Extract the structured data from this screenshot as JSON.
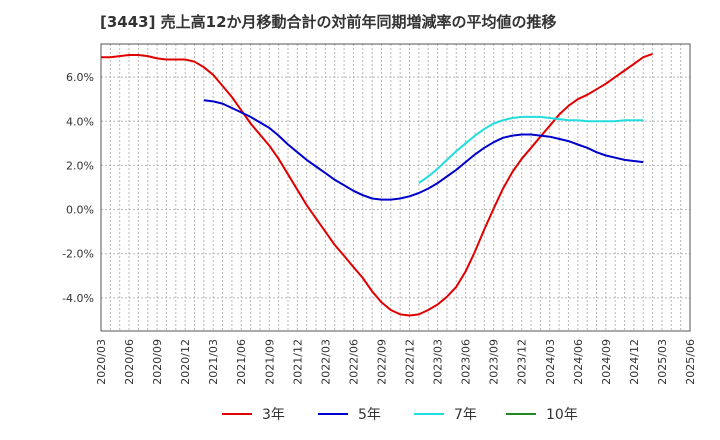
{
  "chart_data": {
    "type": "line",
    "title": "[3443]  売上高12か月移動合計の対前年同期増減率の平均値の推移",
    "xlabel": "",
    "ylabel": "",
    "ylim": [
      -5.5,
      7.5
    ],
    "y_ticks": [
      -4.0,
      -2.0,
      0.0,
      2.0,
      4.0,
      6.0
    ],
    "y_tick_labels": [
      "-4.0%",
      "-2.0%",
      "0.0%",
      "2.0%",
      "4.0%",
      "6.0%"
    ],
    "x_tick_labels": [
      "2020/03",
      "2020/06",
      "2020/09",
      "2020/12",
      "2021/03",
      "2021/06",
      "2021/09",
      "2021/12",
      "2022/03",
      "2022/06",
      "2022/09",
      "2022/12",
      "2023/03",
      "2023/06",
      "2023/09",
      "2023/12",
      "2024/03",
      "2024/06",
      "2024/09",
      "2024/12",
      "2025/03",
      "2025/06"
    ],
    "grid": true,
    "legend_position": "bottom",
    "series": [
      {
        "name": "3年",
        "color": "#e00000",
        "points": [
          [
            "2020/03",
            6.9
          ],
          [
            "2020/04",
            6.9
          ],
          [
            "2020/05",
            6.95
          ],
          [
            "2020/06",
            7.0
          ],
          [
            "2020/07",
            7.0
          ],
          [
            "2020/08",
            6.95
          ],
          [
            "2020/09",
            6.85
          ],
          [
            "2020/10",
            6.8
          ],
          [
            "2020/11",
            6.8
          ],
          [
            "2020/12",
            6.8
          ],
          [
            "2021/01",
            6.7
          ],
          [
            "2021/02",
            6.45
          ],
          [
            "2021/03",
            6.1
          ],
          [
            "2021/04",
            5.6
          ],
          [
            "2021/05",
            5.1
          ],
          [
            "2021/06",
            4.5
          ],
          [
            "2021/07",
            3.9
          ],
          [
            "2021/08",
            3.4
          ],
          [
            "2021/09",
            2.9
          ],
          [
            "2021/10",
            2.3
          ],
          [
            "2021/11",
            1.6
          ],
          [
            "2021/12",
            0.9
          ],
          [
            "2022/01",
            0.2
          ],
          [
            "2022/02",
            -0.4
          ],
          [
            "2022/03",
            -1.0
          ],
          [
            "2022/04",
            -1.6
          ],
          [
            "2022/05",
            -2.1
          ],
          [
            "2022/06",
            -2.6
          ],
          [
            "2022/07",
            -3.1
          ],
          [
            "2022/08",
            -3.7
          ],
          [
            "2022/09",
            -4.2
          ],
          [
            "2022/10",
            -4.55
          ],
          [
            "2022/11",
            -4.75
          ],
          [
            "2022/12",
            -4.8
          ],
          [
            "2023/01",
            -4.75
          ],
          [
            "2023/02",
            -4.55
          ],
          [
            "2023/03",
            -4.3
          ],
          [
            "2023/04",
            -3.95
          ],
          [
            "2023/05",
            -3.5
          ],
          [
            "2023/06",
            -2.8
          ],
          [
            "2023/07",
            -1.9
          ],
          [
            "2023/08",
            -0.9
          ],
          [
            "2023/09",
            0.05
          ],
          [
            "2023/10",
            0.95
          ],
          [
            "2023/11",
            1.7
          ],
          [
            "2023/12",
            2.3
          ],
          [
            "2024/01",
            2.8
          ],
          [
            "2024/02",
            3.3
          ],
          [
            "2024/03",
            3.8
          ],
          [
            "2024/04",
            4.3
          ],
          [
            "2024/05",
            4.7
          ],
          [
            "2024/06",
            5.0
          ],
          [
            "2024/07",
            5.2
          ],
          [
            "2024/08",
            5.45
          ],
          [
            "2024/09",
            5.7
          ],
          [
            "2024/10",
            6.0
          ],
          [
            "2024/11",
            6.3
          ],
          [
            "2024/12",
            6.6
          ],
          [
            "2025/01",
            6.9
          ],
          [
            "2025/02",
            7.05
          ]
        ]
      },
      {
        "name": "5年",
        "color": "#0000cc",
        "points": [
          [
            "2021/02",
            4.95
          ],
          [
            "2021/03",
            4.9
          ],
          [
            "2021/04",
            4.8
          ],
          [
            "2021/05",
            4.6
          ],
          [
            "2021/06",
            4.4
          ],
          [
            "2021/07",
            4.2
          ],
          [
            "2021/08",
            3.95
          ],
          [
            "2021/09",
            3.7
          ],
          [
            "2021/10",
            3.35
          ],
          [
            "2021/11",
            2.95
          ],
          [
            "2021/12",
            2.6
          ],
          [
            "2022/01",
            2.25
          ],
          [
            "2022/02",
            1.95
          ],
          [
            "2022/03",
            1.65
          ],
          [
            "2022/04",
            1.35
          ],
          [
            "2022/05",
            1.1
          ],
          [
            "2022/06",
            0.85
          ],
          [
            "2022/07",
            0.65
          ],
          [
            "2022/08",
            0.5
          ],
          [
            "2022/09",
            0.45
          ],
          [
            "2022/10",
            0.45
          ],
          [
            "2022/11",
            0.5
          ],
          [
            "2022/12",
            0.6
          ],
          [
            "2023/01",
            0.75
          ],
          [
            "2023/02",
            0.95
          ],
          [
            "2023/03",
            1.2
          ],
          [
            "2023/04",
            1.5
          ],
          [
            "2023/05",
            1.8
          ],
          [
            "2023/06",
            2.15
          ],
          [
            "2023/07",
            2.5
          ],
          [
            "2023/08",
            2.8
          ],
          [
            "2023/09",
            3.05
          ],
          [
            "2023/10",
            3.25
          ],
          [
            "2023/11",
            3.35
          ],
          [
            "2023/12",
            3.4
          ],
          [
            "2024/01",
            3.4
          ],
          [
            "2024/02",
            3.35
          ],
          [
            "2024/03",
            3.3
          ],
          [
            "2024/04",
            3.2
          ],
          [
            "2024/05",
            3.1
          ],
          [
            "2024/06",
            2.95
          ],
          [
            "2024/07",
            2.8
          ],
          [
            "2024/08",
            2.6
          ],
          [
            "2024/09",
            2.45
          ],
          [
            "2024/10",
            2.35
          ],
          [
            "2024/11",
            2.25
          ],
          [
            "2024/12",
            2.2
          ],
          [
            "2025/01",
            2.15
          ]
        ]
      },
      {
        "name": "7年",
        "color": "#22dddd",
        "points": [
          [
            "2023/01",
            1.2
          ],
          [
            "2023/02",
            1.5
          ],
          [
            "2023/03",
            1.85
          ],
          [
            "2023/04",
            2.25
          ],
          [
            "2023/05",
            2.65
          ],
          [
            "2023/06",
            3.0
          ],
          [
            "2023/07",
            3.35
          ],
          [
            "2023/08",
            3.65
          ],
          [
            "2023/09",
            3.9
          ],
          [
            "2023/10",
            4.05
          ],
          [
            "2023/11",
            4.15
          ],
          [
            "2023/12",
            4.2
          ],
          [
            "2024/01",
            4.2
          ],
          [
            "2024/02",
            4.2
          ],
          [
            "2024/03",
            4.15
          ],
          [
            "2024/04",
            4.1
          ],
          [
            "2024/05",
            4.05
          ],
          [
            "2024/06",
            4.05
          ],
          [
            "2024/07",
            4.0
          ],
          [
            "2024/08",
            4.0
          ],
          [
            "2024/09",
            4.0
          ],
          [
            "2024/10",
            4.0
          ],
          [
            "2024/11",
            4.05
          ],
          [
            "2024/12",
            4.05
          ],
          [
            "2025/01",
            4.05
          ]
        ]
      },
      {
        "name": "10年",
        "color": "#228822",
        "points": []
      }
    ]
  }
}
